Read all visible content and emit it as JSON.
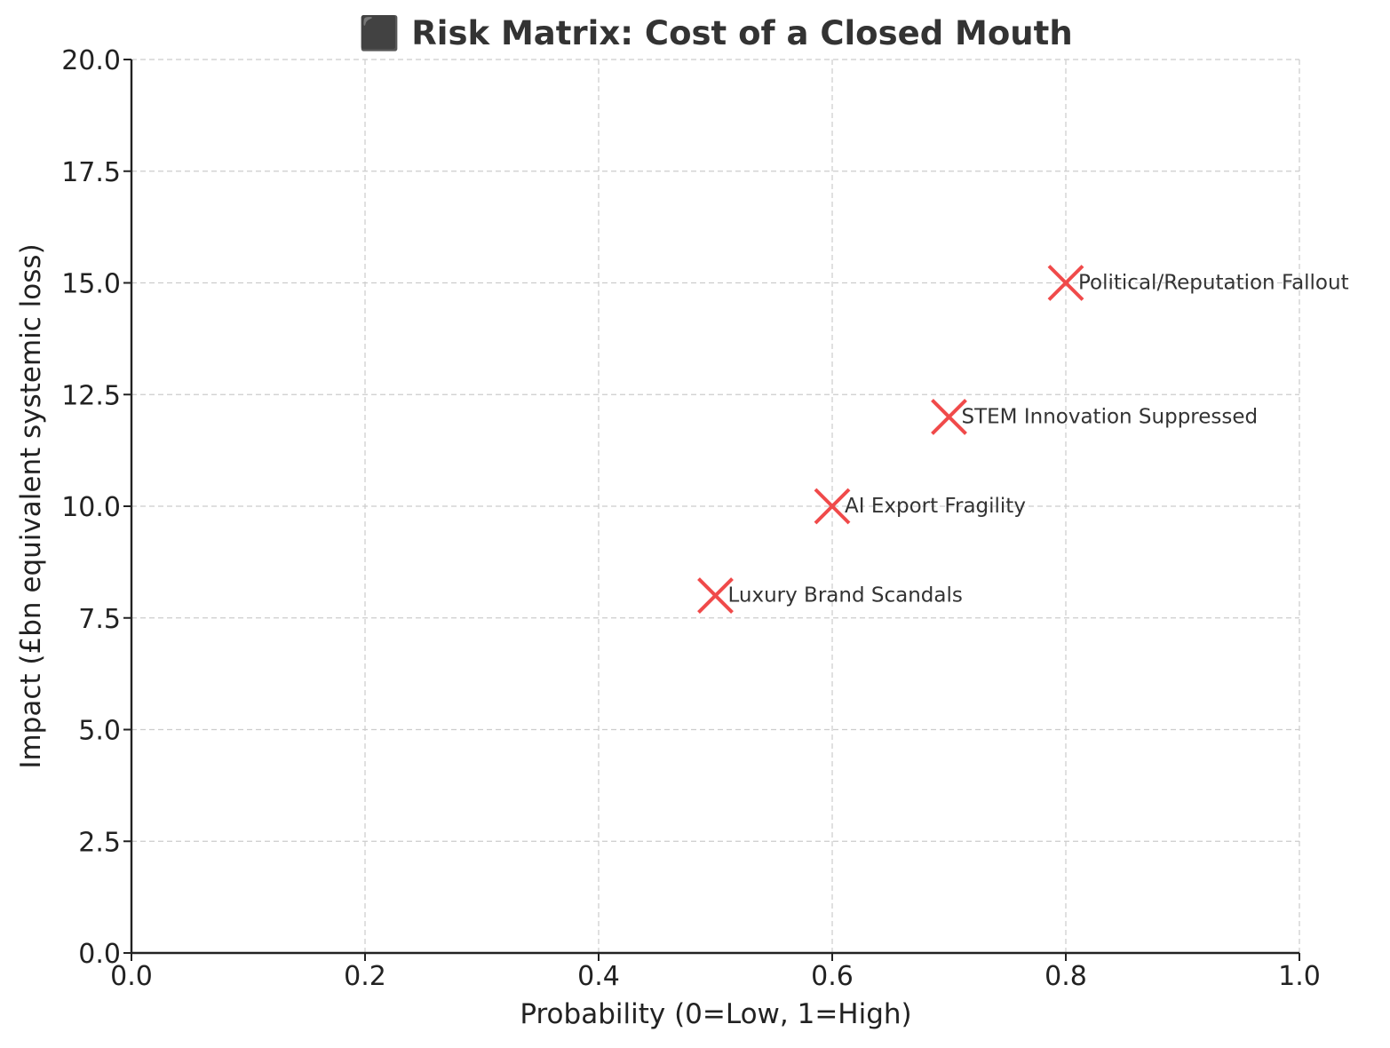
{
  "chart_data": {
    "type": "scatter",
    "title": "⬛ Risk Matrix: Cost of a Closed Mouth",
    "xlabel": "Probability (0=Low, 1=High)",
    "ylabel": "Impact (£bn equivalent systemic loss)",
    "xlim": [
      0.0,
      1.0
    ],
    "ylim": [
      0.0,
      20.0
    ],
    "xticks": [
      "0.0",
      "0.2",
      "0.4",
      "0.6",
      "0.8",
      "1.0"
    ],
    "yticks": [
      "0.0",
      "2.5",
      "5.0",
      "7.5",
      "10.0",
      "12.5",
      "15.0",
      "17.5",
      "20.0"
    ],
    "grid": true,
    "marker": "x",
    "marker_color": "#f04a4a",
    "points": [
      {
        "label": "Luxury Brand Scandals",
        "x": 0.5,
        "y": 8
      },
      {
        "label": "AI Export Fragility",
        "x": 0.6,
        "y": 10
      },
      {
        "label": "STEM Innovation Suppressed",
        "x": 0.7,
        "y": 12
      },
      {
        "label": "Political/Reputation Fallout",
        "x": 0.8,
        "y": 15
      }
    ]
  }
}
